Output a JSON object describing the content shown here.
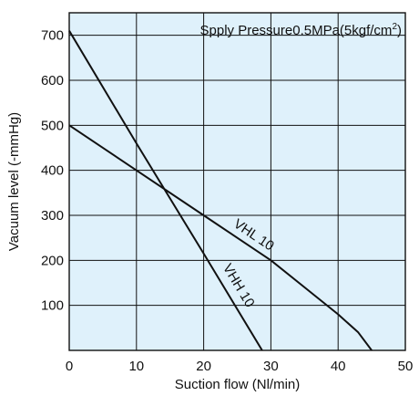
{
  "chart_data": {
    "type": "line",
    "annotation": {
      "text": "Spply Pressure0.5MPa(5kgf/cm",
      "superscript": "2",
      "suffix": ")"
    },
    "xlabel": "Suction flow (Nl/min)",
    "ylabel": "Vacuum level (-mmHg)",
    "xlim": [
      0,
      50
    ],
    "ylim": [
      0,
      750
    ],
    "x_ticks": [
      "0",
      "10",
      "20",
      "30",
      "40",
      "50"
    ],
    "y_ticks": [
      "100",
      "200",
      "300",
      "400",
      "500",
      "600",
      "700"
    ],
    "grid": true,
    "series": [
      {
        "name": "VHL 10",
        "points": [
          [
            0,
            500
          ],
          [
            10,
            400
          ],
          [
            20,
            300
          ],
          [
            30,
            200
          ],
          [
            35,
            140
          ],
          [
            40,
            80
          ],
          [
            43,
            40
          ],
          [
            45,
            0
          ]
        ]
      },
      {
        "name": "VHH 10",
        "points": [
          [
            0,
            710
          ],
          [
            10,
            460
          ],
          [
            20,
            215
          ],
          [
            28.7,
            0
          ]
        ]
      }
    ],
    "colors": {
      "plot_background": "#dff1fb",
      "grid": "#111111",
      "line": "#111111"
    }
  }
}
